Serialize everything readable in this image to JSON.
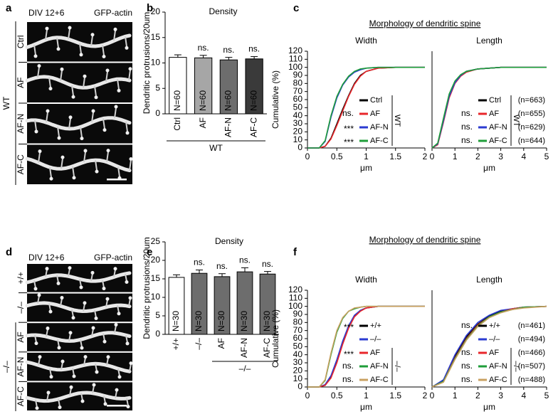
{
  "figure": {
    "panel_letters": [
      "a",
      "b",
      "c",
      "d",
      "e",
      "f"
    ],
    "morphology_titles": [
      "Morphology of dendritic spine",
      "Morphology of dendritic spine"
    ]
  },
  "image_panels": [
    {
      "header_left": "DIV 12+6",
      "header_right": "GFP-actin",
      "rows": [
        "Ctrl",
        "AF",
        "AF-N",
        "AF-C"
      ],
      "group": "WT"
    },
    {
      "header_left": "DIV 12+6",
      "header_right": "GFP-actin",
      "rows": [
        "+/+",
        "–/–",
        "AF",
        "AF-N",
        "AF-C"
      ],
      "group": "–/–"
    }
  ],
  "chart_data": [
    {
      "type": "bar",
      "title": "Density",
      "ylabel": "Dendritic protrusions/20um",
      "categories": [
        "Ctrl",
        "AF",
        "AF-N",
        "AF-C"
      ],
      "values": [
        11.1,
        11.0,
        10.6,
        10.8
      ],
      "errors": [
        0.5,
        0.5,
        0.5,
        0.45
      ],
      "colors": [
        "#ffffff",
        "#a6a6a6",
        "#6d6d6d",
        "#3a3a3a"
      ],
      "bar_labels": [
        "N=60",
        "N=60",
        "N=60",
        "N=60"
      ],
      "annotations": [
        null,
        "ns.",
        "ns.",
        "ns."
      ],
      "group_label": "WT",
      "ylim": [
        0,
        20
      ],
      "yticks": [
        0,
        5,
        10,
        15,
        20
      ]
    },
    {
      "type": "line",
      "title": "Width",
      "ylabel": "Cumulative (%)",
      "xlabel": "μm",
      "x": [
        0,
        0.2,
        0.3,
        0.4,
        0.5,
        0.6,
        0.7,
        0.8,
        0.9,
        1.0,
        1.2,
        1.5,
        2
      ],
      "series": [
        {
          "name": "Ctrl",
          "color": "#000000",
          "stat": null,
          "values": [
            0,
            0,
            2,
            12,
            30,
            48,
            65,
            80,
            90,
            95,
            99,
            100,
            100
          ]
        },
        {
          "name": "AF",
          "color": "#e8262a",
          "stat": "ns.",
          "values": [
            0,
            0,
            2,
            11,
            28,
            46,
            64,
            79,
            89,
            95,
            99,
            100,
            100
          ]
        },
        {
          "name": "AF-N",
          "color": "#2b3bd1",
          "stat": "***",
          "values": [
            0,
            0,
            8,
            38,
            62,
            78,
            88,
            94,
            97,
            99,
            100,
            100,
            100
          ]
        },
        {
          "name": "AF-C",
          "color": "#1f9e3a",
          "stat": "***",
          "values": [
            0,
            0,
            9,
            40,
            64,
            79,
            89,
            95,
            98,
            99,
            100,
            100,
            100
          ]
        }
      ],
      "legend_group_label": "WT",
      "xlim": [
        0,
        2
      ],
      "xticks": [
        0,
        0.5,
        1,
        1.5,
        2
      ],
      "ylim": [
        0,
        120
      ],
      "yticks": [
        0,
        10,
        20,
        30,
        40,
        50,
        60,
        70,
        80,
        90,
        100,
        110,
        120
      ]
    },
    {
      "type": "line",
      "title": "Length",
      "xlabel": "μm",
      "x": [
        0,
        0.25,
        0.5,
        0.75,
        1,
        1.25,
        1.5,
        2,
        2.5,
        3,
        4,
        5
      ],
      "series": [
        {
          "name": "Ctrl",
          "color": "#000000",
          "stat": null,
          "n_label": "(n=663)",
          "values": [
            0,
            5,
            35,
            65,
            82,
            90,
            95,
            98,
            99,
            100,
            100,
            100
          ]
        },
        {
          "name": "AF",
          "color": "#e8262a",
          "stat": "ns.",
          "n_label": "(n=655)",
          "values": [
            0,
            4,
            32,
            62,
            80,
            89,
            94,
            98,
            99,
            100,
            100,
            100
          ]
        },
        {
          "name": "AF-N",
          "color": "#2b3bd1",
          "stat": "ns.",
          "n_label": "(n=629)",
          "values": [
            0,
            5,
            34,
            64,
            81,
            90,
            95,
            98,
            99,
            100,
            100,
            100
          ]
        },
        {
          "name": "AF-C",
          "color": "#1f9e3a",
          "stat": "ns.",
          "n_label": "(n=644)",
          "values": [
            0,
            6,
            37,
            67,
            83,
            91,
            95,
            98,
            99,
            100,
            100,
            100
          ]
        }
      ],
      "legend_group_label": "WT",
      "xlim": [
        0,
        5
      ],
      "xticks": [
        0,
        1,
        2,
        3,
        4,
        5
      ],
      "ylim": [
        0,
        120
      ]
    },
    {
      "type": "bar",
      "title": "Density",
      "ylabel": "Dendritic protrusions/20um",
      "categories": [
        "+/+",
        "–/–",
        "AF",
        "AF-N",
        "AF-C"
      ],
      "values": [
        15.4,
        16.5,
        15.6,
        16.9,
        16.3
      ],
      "errors": [
        0.7,
        0.9,
        0.8,
        1.1,
        0.7
      ],
      "colors": [
        "#ffffff",
        "#6d6d6d",
        "#6d6d6d",
        "#6d6d6d",
        "#6d6d6d"
      ],
      "bar_labels": [
        "N=30",
        "N=30",
        "N=30",
        "N=30",
        "N=30"
      ],
      "annotations": [
        null,
        "ns.",
        "ns.",
        "ns.",
        "ns."
      ],
      "group_label": "–/–",
      "ylim": [
        0,
        25
      ],
      "yticks": [
        0,
        5,
        10,
        15,
        20,
        25
      ]
    },
    {
      "type": "line",
      "title": "Width",
      "ylabel": "Cumulative (%)",
      "xlabel": "μm",
      "x": [
        0,
        0.2,
        0.3,
        0.4,
        0.5,
        0.6,
        0.7,
        0.8,
        0.9,
        1.0,
        1.2,
        1.5,
        2
      ],
      "series": [
        {
          "name": "+/+",
          "color": "#000000",
          "stat": "***",
          "values": [
            0,
            0,
            2,
            12,
            32,
            55,
            75,
            88,
            95,
            98,
            100,
            100,
            100
          ]
        },
        {
          "name": "–/–",
          "color": "#2b3bd1",
          "stat": null,
          "values": [
            0,
            0,
            3,
            14,
            34,
            57,
            76,
            89,
            95,
            98,
            100,
            100,
            100
          ]
        },
        {
          "name": "AF",
          "color": "#e8262a",
          "stat": "***",
          "values": [
            0,
            0,
            2,
            11,
            30,
            53,
            73,
            87,
            94,
            98,
            100,
            100,
            100
          ]
        },
        {
          "name": "AF-N",
          "color": "#1f9e3a",
          "stat": "ns.",
          "values": [
            0,
            0,
            8,
            40,
            68,
            85,
            94,
            97,
            99,
            100,
            100,
            100,
            100
          ]
        },
        {
          "name": "AF-C",
          "color": "#c8a060",
          "stat": "ns.",
          "values": [
            0,
            0,
            9,
            42,
            70,
            86,
            94,
            98,
            99,
            100,
            100,
            100,
            100
          ]
        }
      ],
      "legend_group_label": "–/–",
      "xlim": [
        0,
        2
      ],
      "xticks": [
        0,
        0.5,
        1,
        1.5,
        2
      ],
      "ylim": [
        0,
        120
      ],
      "yticks": [
        0,
        10,
        20,
        30,
        40,
        50,
        60,
        70,
        80,
        90,
        100,
        110,
        120
      ]
    },
    {
      "type": "line",
      "title": "Length",
      "xlabel": "μm",
      "x": [
        0,
        0.5,
        1,
        1.5,
        2,
        2.5,
        3,
        3.5,
        4,
        5
      ],
      "series": [
        {
          "name": "+/+",
          "color": "#000000",
          "stat": "ns.",
          "n_label": "(n=461)",
          "values": [
            0,
            8,
            38,
            62,
            78,
            88,
            94,
            97,
            99,
            100
          ]
        },
        {
          "name": "–/–",
          "color": "#2b3bd1",
          "stat": null,
          "n_label": "(n=494)",
          "values": [
            0,
            9,
            40,
            64,
            80,
            89,
            95,
            97,
            99,
            100
          ]
        },
        {
          "name": "AF",
          "color": "#e8262a",
          "stat": "ns.",
          "n_label": "(n=466)",
          "values": [
            0,
            7,
            36,
            60,
            77,
            87,
            93,
            97,
            99,
            100
          ]
        },
        {
          "name": "AF-N",
          "color": "#1f9e3a",
          "stat": "ns.",
          "n_label": "(n=507)",
          "values": [
            0,
            7,
            35,
            59,
            76,
            87,
            93,
            96,
            99,
            100
          ]
        },
        {
          "name": "AF-C",
          "color": "#c8a060",
          "stat": "ns.",
          "n_label": "(n=488)",
          "values": [
            0,
            6,
            34,
            58,
            75,
            86,
            92,
            96,
            98,
            100
          ]
        }
      ],
      "legend_group_label": "–/–",
      "xlim": [
        0,
        5
      ],
      "xticks": [
        0,
        1,
        2,
        3,
        4,
        5
      ],
      "ylim": [
        0,
        120
      ]
    }
  ]
}
